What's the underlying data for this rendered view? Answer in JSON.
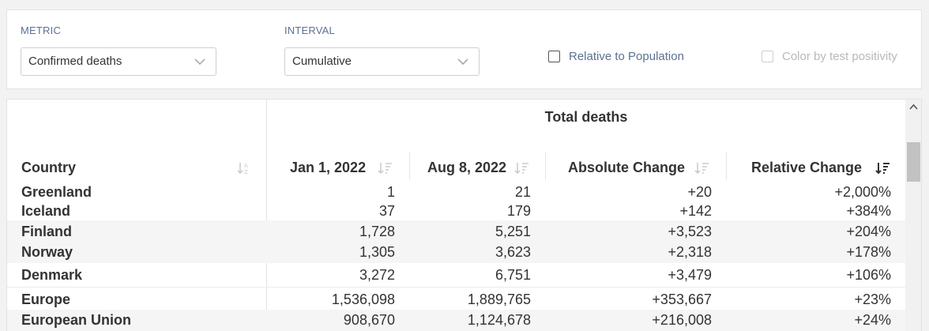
{
  "controls": {
    "metric": {
      "label": "METRIC",
      "value": "Confirmed deaths"
    },
    "interval": {
      "label": "INTERVAL",
      "value": "Cumulative"
    },
    "relative_to_population": {
      "label": "Relative to Population",
      "checked": false
    },
    "color_by_test_positivity": {
      "label": "Color by test positivity",
      "checked": false,
      "disabled": true
    }
  },
  "table": {
    "group_title": "Total deaths",
    "columns": {
      "country": "Country",
      "start": "Jan 1, 2022",
      "end": "Aug 8, 2022",
      "absolute": "Absolute Change",
      "relative": "Relative Change"
    },
    "sorted_by": "relative",
    "rows": [
      {
        "country": "Greenland",
        "start": "1",
        "end": "21",
        "absolute": "+20",
        "relative": "+2,000%"
      },
      {
        "country": "Iceland",
        "start": "37",
        "end": "179",
        "absolute": "+142",
        "relative": "+384%"
      },
      {
        "country": "Finland",
        "start": "1,728",
        "end": "5,251",
        "absolute": "+3,523",
        "relative": "+204%"
      },
      {
        "country": "Norway",
        "start": "1,305",
        "end": "3,623",
        "absolute": "+2,318",
        "relative": "+178%"
      },
      {
        "country": "Denmark",
        "start": "3,272",
        "end": "6,751",
        "absolute": "+3,479",
        "relative": "+106%"
      },
      {
        "country": "Europe",
        "start": "1,536,098",
        "end": "1,889,765",
        "absolute": "+353,667",
        "relative": "+23%"
      },
      {
        "country": "European Union",
        "start": "908,670",
        "end": "1,124,678",
        "absolute": "+216,008",
        "relative": "+24%"
      }
    ]
  },
  "icons": {
    "dropdown": "chevron-down-icon",
    "sort": "sort-icon",
    "sort_active": "sort-descending-icon",
    "scroll_up": "scroll-up-arrow-icon"
  }
}
